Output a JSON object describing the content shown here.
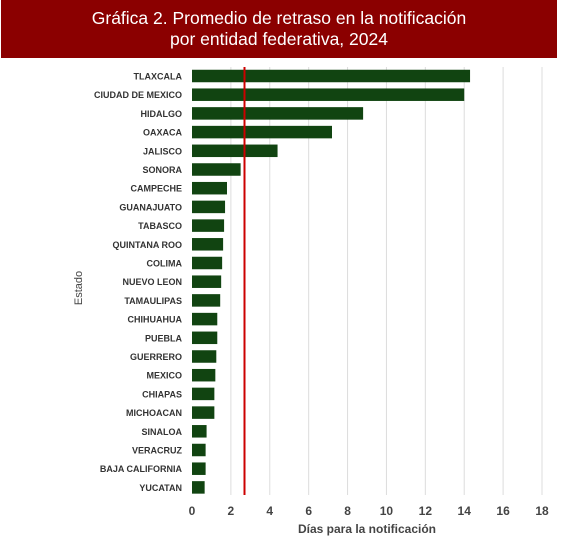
{
  "chart_data": {
    "type": "bar",
    "orientation": "horizontal",
    "title_line1": "Gráfica 2. Promedio de retraso en la notificación",
    "title_line2": "por entidad federativa, 2024",
    "xlabel": "Días para la notificación",
    "ylabel": "Estado",
    "xlim": [
      0,
      18
    ],
    "xticks": [
      "0",
      "2",
      "4",
      "6",
      "8",
      "10",
      "12",
      "14",
      "16",
      "18"
    ],
    "grid": "vertical",
    "legend": "none",
    "bar_color": "#114411",
    "reference_line": {
      "value": 2.7,
      "color": "#cc0000"
    },
    "categories": [
      "TLAXCALA",
      "CIUDAD DE MEXICO",
      "HIDALGO",
      "OAXACA",
      "JALISCO",
      "SONORA",
      "CAMPECHE",
      "GUANAJUATO",
      "TABASCO",
      "QUINTANA ROO",
      "COLIMA",
      "NUEVO LEON",
      "TAMAULIPAS",
      "CHIHUAHUA",
      "PUEBLA",
      "GUERRERO",
      "MEXICO",
      "CHIAPAS",
      "MICHOACAN",
      "SINALOA",
      "VERACRUZ",
      "BAJA CALIFORNIA",
      "YUCATAN"
    ],
    "values": [
      14.3,
      14.0,
      8.8,
      7.2,
      4.4,
      2.5,
      1.8,
      1.7,
      1.65,
      1.6,
      1.55,
      1.5,
      1.45,
      1.3,
      1.3,
      1.25,
      1.2,
      1.15,
      1.15,
      0.75,
      0.7,
      0.7,
      0.65
    ]
  }
}
